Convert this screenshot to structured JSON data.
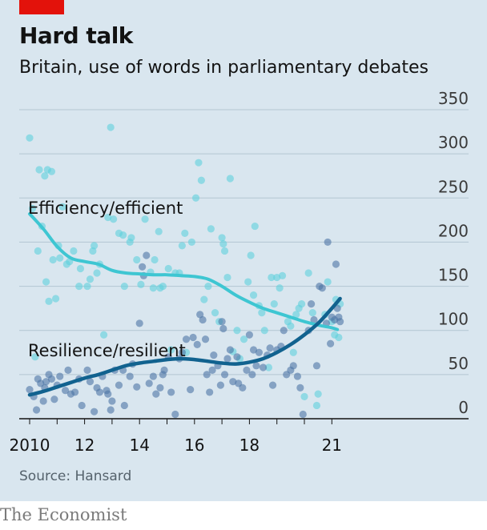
{
  "header": {
    "title": "Hard talk",
    "subtitle": "Britain, use of words in parliamentary debates"
  },
  "source": "Source: Hansard",
  "brand": "The Economist",
  "colors": {
    "background": "#d9e6ef",
    "brand_red": "#e3120b",
    "efficiency_line": "#3ec6d2",
    "efficiency_dots": "#5fd0dc",
    "resilience_line": "#11628f",
    "resilience_dots": "#4d74a5",
    "gridline": "#b3c6d2"
  },
  "chart_data": {
    "type": "scatter",
    "x_tick_labels": [
      "2010",
      "12",
      "14",
      "16",
      "18",
      "21"
    ],
    "x_tick_values": [
      2010,
      2012,
      2014,
      2016,
      2018,
      2021
    ],
    "xlim": [
      2009.9,
      2021.5
    ],
    "y_ticks": [
      0,
      50,
      100,
      150,
      200,
      250,
      300,
      350
    ],
    "ylim": [
      0,
      350
    ],
    "grid": true,
    "y_axis_side": "right",
    "series": [
      {
        "name": "Efficiency/efficient",
        "trend": [
          [
            2010.0,
            232
          ],
          [
            2010.5,
            215
          ],
          [
            2011.0,
            195
          ],
          [
            2011.5,
            182
          ],
          [
            2012.0,
            178
          ],
          [
            2012.5,
            175
          ],
          [
            2013.0,
            168
          ],
          [
            2013.5,
            165
          ],
          [
            2014.0,
            164
          ],
          [
            2014.5,
            163
          ],
          [
            2015.0,
            163
          ],
          [
            2015.5,
            162
          ],
          [
            2016.0,
            161
          ],
          [
            2016.5,
            158
          ],
          [
            2017.0,
            150
          ],
          [
            2017.5,
            140
          ],
          [
            2018.0,
            132
          ],
          [
            2018.5,
            125
          ],
          [
            2019.0,
            120
          ],
          [
            2019.5,
            115
          ],
          [
            2020.0,
            110
          ],
          [
            2020.5,
            106
          ],
          [
            2021.0,
            103
          ],
          [
            2021.2,
            101
          ]
        ],
        "points": [
          [
            2010.0,
            318
          ],
          [
            2010.1,
            238
          ],
          [
            2010.2,
            70
          ],
          [
            2010.3,
            190
          ],
          [
            2010.35,
            282
          ],
          [
            2010.45,
            218
          ],
          [
            2010.55,
            275
          ],
          [
            2010.6,
            155
          ],
          [
            2010.65,
            282
          ],
          [
            2010.7,
            133
          ],
          [
            2010.8,
            280
          ],
          [
            2010.85,
            180
          ],
          [
            2010.95,
            136
          ],
          [
            2011.05,
            196
          ],
          [
            2011.1,
            182
          ],
          [
            2011.2,
            240
          ],
          [
            2011.35,
            175
          ],
          [
            2011.45,
            178
          ],
          [
            2011.6,
            190
          ],
          [
            2011.8,
            150
          ],
          [
            2011.85,
            170
          ],
          [
            2012.1,
            150
          ],
          [
            2012.2,
            158
          ],
          [
            2012.3,
            190
          ],
          [
            2012.35,
            196
          ],
          [
            2012.45,
            165
          ],
          [
            2012.55,
            175
          ],
          [
            2012.7,
            95
          ],
          [
            2012.85,
            228
          ],
          [
            2012.95,
            330
          ],
          [
            2013.05,
            226
          ],
          [
            2013.25,
            210
          ],
          [
            2013.4,
            208
          ],
          [
            2013.45,
            150
          ],
          [
            2013.65,
            200
          ],
          [
            2013.7,
            205
          ],
          [
            2013.9,
            180
          ],
          [
            2014.05,
            152
          ],
          [
            2014.2,
            226
          ],
          [
            2014.4,
            166
          ],
          [
            2014.5,
            148
          ],
          [
            2014.55,
            180
          ],
          [
            2014.7,
            212
          ],
          [
            2014.75,
            148
          ],
          [
            2014.85,
            150
          ],
          [
            2015.05,
            170
          ],
          [
            2015.15,
            78
          ],
          [
            2015.3,
            165
          ],
          [
            2015.45,
            165
          ],
          [
            2015.55,
            196
          ],
          [
            2015.65,
            210
          ],
          [
            2015.7,
            75
          ],
          [
            2015.9,
            200
          ],
          [
            2016.05,
            250
          ],
          [
            2016.15,
            290
          ],
          [
            2016.25,
            270
          ],
          [
            2016.35,
            135
          ],
          [
            2016.5,
            150
          ],
          [
            2016.6,
            215
          ],
          [
            2016.75,
            120
          ],
          [
            2016.9,
            110
          ],
          [
            2017.0,
            205
          ],
          [
            2017.05,
            198
          ],
          [
            2017.1,
            190
          ],
          [
            2017.2,
            160
          ],
          [
            2017.3,
            272
          ],
          [
            2017.4,
            76
          ],
          [
            2017.55,
            100
          ],
          [
            2017.65,
            68
          ],
          [
            2017.8,
            90
          ],
          [
            2017.95,
            155
          ],
          [
            2018.05,
            185
          ],
          [
            2018.15,
            140
          ],
          [
            2018.2,
            218
          ],
          [
            2018.35,
            128
          ],
          [
            2018.45,
            120
          ],
          [
            2018.55,
            100
          ],
          [
            2018.7,
            58
          ],
          [
            2018.8,
            160
          ],
          [
            2018.9,
            130
          ],
          [
            2019.0,
            160
          ],
          [
            2019.1,
            148
          ],
          [
            2019.2,
            162
          ],
          [
            2019.4,
            110
          ],
          [
            2019.5,
            105
          ],
          [
            2019.6,
            75
          ],
          [
            2019.7,
            118
          ],
          [
            2019.8,
            125
          ],
          [
            2019.9,
            130
          ],
          [
            2020.0,
            25
          ],
          [
            2020.15,
            165
          ],
          [
            2020.3,
            120
          ],
          [
            2020.45,
            15
          ],
          [
            2020.5,
            28
          ],
          [
            2020.75,
            118
          ],
          [
            2020.85,
            155
          ],
          [
            2021.0,
            110
          ],
          [
            2021.1,
            95
          ],
          [
            2021.15,
            135
          ],
          [
            2021.25,
            92
          ],
          [
            2021.3,
            130
          ]
        ]
      },
      {
        "name": "Resilience/resilient",
        "trend": [
          [
            2010.0,
            27
          ],
          [
            2010.5,
            31
          ],
          [
            2011.0,
            36
          ],
          [
            2011.5,
            41
          ],
          [
            2012.0,
            46
          ],
          [
            2012.5,
            50
          ],
          [
            2013.0,
            55
          ],
          [
            2013.5,
            60
          ],
          [
            2014.0,
            63
          ],
          [
            2014.5,
            65
          ],
          [
            2015.0,
            67
          ],
          [
            2015.5,
            68
          ],
          [
            2016.0,
            67
          ],
          [
            2016.5,
            65
          ],
          [
            2017.0,
            63
          ],
          [
            2017.5,
            62
          ],
          [
            2018.0,
            64
          ],
          [
            2018.5,
            68
          ],
          [
            2019.0,
            75
          ],
          [
            2019.5,
            84
          ],
          [
            2020.0,
            95
          ],
          [
            2020.5,
            108
          ],
          [
            2021.0,
            125
          ],
          [
            2021.3,
            136
          ]
        ],
        "points": [
          [
            2010.0,
            33
          ],
          [
            2010.15,
            25
          ],
          [
            2010.25,
            10
          ],
          [
            2010.3,
            45
          ],
          [
            2010.4,
            40
          ],
          [
            2010.5,
            20
          ],
          [
            2010.55,
            35
          ],
          [
            2010.6,
            42
          ],
          [
            2010.7,
            50
          ],
          [
            2010.8,
            45
          ],
          [
            2010.9,
            22
          ],
          [
            2011.0,
            38
          ],
          [
            2011.1,
            48
          ],
          [
            2011.3,
            32
          ],
          [
            2011.4,
            55
          ],
          [
            2011.5,
            28
          ],
          [
            2011.65,
            30
          ],
          [
            2011.8,
            45
          ],
          [
            2011.9,
            15
          ],
          [
            2012.1,
            55
          ],
          [
            2012.2,
            42
          ],
          [
            2012.35,
            8
          ],
          [
            2012.45,
            35
          ],
          [
            2012.55,
            30
          ],
          [
            2012.65,
            48
          ],
          [
            2012.8,
            32
          ],
          [
            2012.85,
            28
          ],
          [
            2012.95,
            10
          ],
          [
            2013.0,
            20
          ],
          [
            2013.1,
            55
          ],
          [
            2013.25,
            38
          ],
          [
            2013.4,
            55
          ],
          [
            2013.45,
            15
          ],
          [
            2013.65,
            48
          ],
          [
            2013.75,
            62
          ],
          [
            2013.9,
            36
          ],
          [
            2014.0,
            108
          ],
          [
            2014.1,
            172
          ],
          [
            2014.15,
            162
          ],
          [
            2014.25,
            185
          ],
          [
            2014.35,
            40
          ],
          [
            2014.5,
            48
          ],
          [
            2014.6,
            28
          ],
          [
            2014.75,
            35
          ],
          [
            2014.85,
            50
          ],
          [
            2014.9,
            55
          ],
          [
            2015.05,
            70
          ],
          [
            2015.15,
            30
          ],
          [
            2015.3,
            5
          ],
          [
            2015.45,
            68
          ],
          [
            2015.55,
            75
          ],
          [
            2015.7,
            90
          ],
          [
            2015.85,
            33
          ],
          [
            2015.95,
            92
          ],
          [
            2016.1,
            84
          ],
          [
            2016.2,
            118
          ],
          [
            2016.3,
            112
          ],
          [
            2016.4,
            90
          ],
          [
            2016.45,
            50
          ],
          [
            2016.55,
            30
          ],
          [
            2016.65,
            55
          ],
          [
            2016.7,
            72
          ],
          [
            2016.85,
            60
          ],
          [
            2016.95,
            38
          ],
          [
            2017.0,
            110
          ],
          [
            2017.05,
            102
          ],
          [
            2017.1,
            50
          ],
          [
            2017.2,
            68
          ],
          [
            2017.3,
            78
          ],
          [
            2017.4,
            42
          ],
          [
            2017.55,
            70
          ],
          [
            2017.6,
            40
          ],
          [
            2017.75,
            35
          ],
          [
            2017.9,
            55
          ],
          [
            2018.0,
            95
          ],
          [
            2018.1,
            50
          ],
          [
            2018.15,
            78
          ],
          [
            2018.25,
            60
          ],
          [
            2018.35,
            75
          ],
          [
            2018.5,
            58
          ],
          [
            2018.65,
            72
          ],
          [
            2018.75,
            80
          ],
          [
            2018.85,
            38
          ],
          [
            2019.0,
            78
          ],
          [
            2019.15,
            82
          ],
          [
            2019.25,
            100
          ],
          [
            2019.35,
            50
          ],
          [
            2019.5,
            55
          ],
          [
            2019.6,
            60
          ],
          [
            2019.75,
            48
          ],
          [
            2019.85,
            35
          ],
          [
            2019.95,
            5
          ],
          [
            2020.15,
            100
          ],
          [
            2020.25,
            130
          ],
          [
            2020.35,
            112
          ],
          [
            2020.45,
            60
          ],
          [
            2020.55,
            150
          ],
          [
            2020.65,
            148
          ],
          [
            2020.8,
            108
          ],
          [
            2020.85,
            200
          ],
          [
            2020.95,
            85
          ],
          [
            2021.0,
            115
          ],
          [
            2021.1,
            112
          ],
          [
            2021.15,
            175
          ],
          [
            2021.2,
            125
          ],
          [
            2021.25,
            115
          ],
          [
            2021.3,
            110
          ]
        ]
      }
    ]
  }
}
